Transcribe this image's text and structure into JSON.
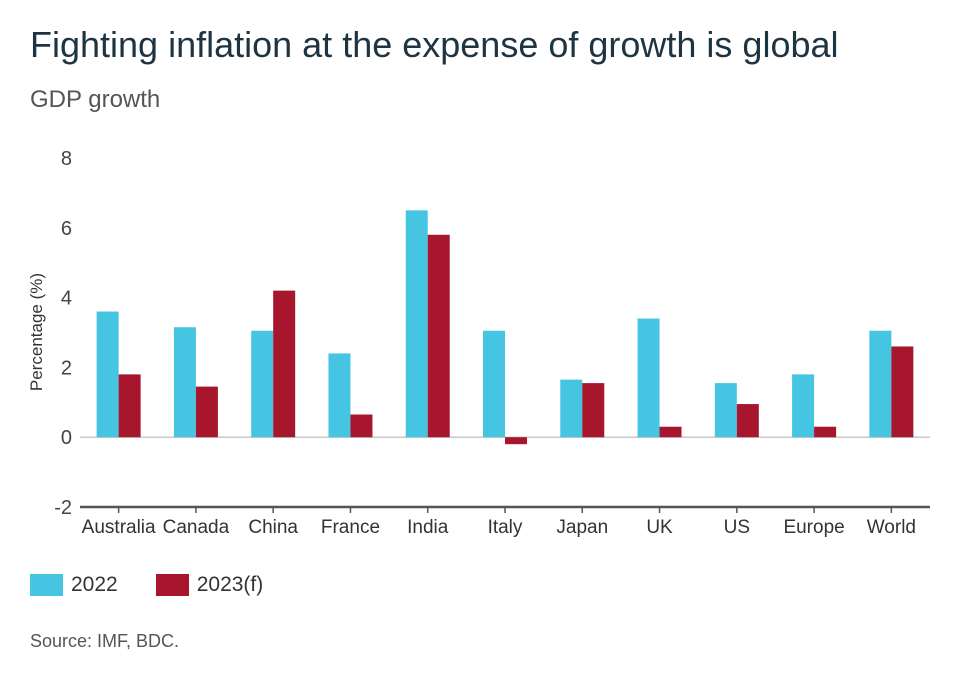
{
  "header": {
    "title": "Fighting inflation at the expense of growth is global",
    "subtitle": "GDP growth"
  },
  "chart_data": {
    "type": "bar",
    "categories": [
      "Australia",
      "Canada",
      "China",
      "France",
      "India",
      "Italy",
      "Japan",
      "UK",
      "US",
      "Europe",
      "World"
    ],
    "series": [
      {
        "name": "2022",
        "color": "#45c5e2",
        "values": [
          3.6,
          3.15,
          3.05,
          2.4,
          6.5,
          3.05,
          1.65,
          3.4,
          1.55,
          1.8,
          3.05
        ]
      },
      {
        "name": "2023(f)",
        "color": "#a8162e",
        "values": [
          1.8,
          1.45,
          4.2,
          0.65,
          5.8,
          -0.2,
          1.55,
          0.3,
          0.95,
          0.3,
          2.6
        ]
      }
    ],
    "ylabel": "Percentage (%)",
    "xlabel": "",
    "ylim": [
      -2,
      8
    ],
    "yticks": [
      "8",
      "6",
      "4",
      "2",
      "0",
      "-2"
    ],
    "ytick_values": [
      8,
      6,
      4,
      2,
      0,
      -2
    ],
    "legend_position": "bottom-left"
  },
  "legend": {
    "items": [
      {
        "label": "2022",
        "color": "#45c5e2"
      },
      {
        "label": "2023(f)",
        "color": "#a8162e"
      }
    ]
  },
  "footer": {
    "source": "Source: IMF, BDC."
  }
}
